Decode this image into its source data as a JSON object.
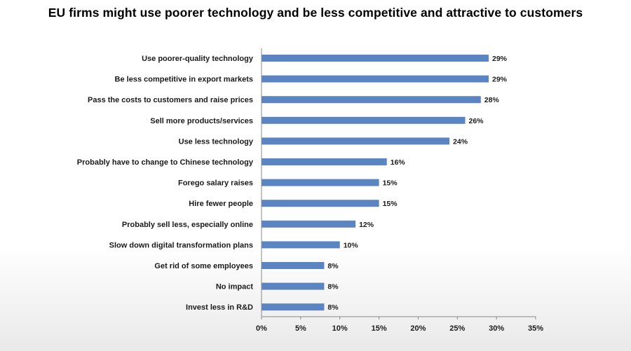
{
  "title": "EU firms might use poorer technology and be less competitive and attractive to customers",
  "colors": {
    "bar": "#5b84c2",
    "axis": "#888888",
    "text": "#1a1a1a"
  },
  "chart_data": {
    "type": "bar",
    "orientation": "horizontal",
    "title": "EU firms might use poorer technology and be less competitive and attractive to customers",
    "categories": [
      "Use poorer-quality technology",
      "Be less competitive in export markets",
      "Pass the costs to customers and raise prices",
      "Sell more products/services",
      "Use less technology",
      "Probably have to change to Chinese technology",
      "Forego salary raises",
      "Hire fewer people",
      "Probably sell less, especially online",
      "Slow down digital transformation plans",
      "Get rid of some employees",
      "No impact",
      "Invest less in R&D"
    ],
    "values": [
      29,
      29,
      28,
      26,
      24,
      16,
      15,
      15,
      12,
      10,
      8,
      8,
      8
    ],
    "value_labels": [
      "29%",
      "29%",
      "28%",
      "26%",
      "24%",
      "16%",
      "15%",
      "15%",
      "12%",
      "10%",
      "8%",
      "8%",
      "8%"
    ],
    "xlim": [
      0,
      35
    ],
    "xticks": [
      0,
      5,
      10,
      15,
      20,
      25,
      30,
      35
    ],
    "xtick_labels": [
      "0%",
      "5%",
      "10%",
      "15%",
      "20%",
      "25%",
      "30%",
      "35%"
    ],
    "xlabel": "",
    "ylabel": "",
    "grid": false,
    "legend": "none"
  }
}
